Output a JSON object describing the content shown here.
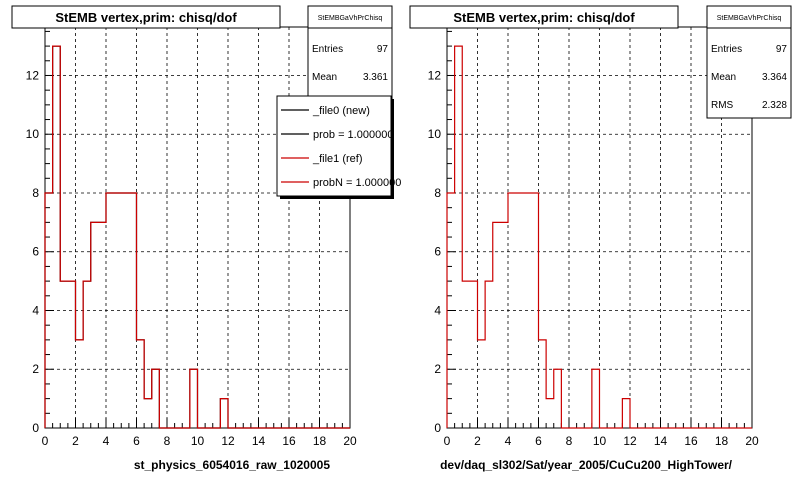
{
  "chart_data": [
    {
      "type": "histogram",
      "title": "StEMB  vertex,prim: chisq/dof",
      "xlabel": "st_physics_6054016_raw_1020005",
      "ylabel": "",
      "xlim": [
        0,
        20
      ],
      "ylim": [
        0,
        13.65
      ],
      "x_ticks": [
        0,
        2,
        4,
        6,
        8,
        10,
        12,
        14,
        16,
        18,
        20
      ],
      "y_ticks": [
        0,
        2,
        4,
        6,
        8,
        10,
        12
      ],
      "grid": true,
      "bin_width": 0.5,
      "x_start": 0,
      "series": [
        {
          "name": "_file0 (new)",
          "color": "#000000",
          "values": [
            8,
            13,
            5,
            5,
            3,
            5,
            7,
            7,
            8,
            8,
            8,
            8,
            3,
            1,
            2,
            0,
            0,
            0,
            0,
            2,
            0,
            0,
            0,
            1,
            0,
            0,
            0,
            0,
            0,
            0,
            0,
            0,
            0,
            0,
            0,
            0,
            0,
            0,
            0,
            0
          ]
        },
        {
          "name": "_file1 (ref)",
          "color": "#cc0000",
          "values": [
            8,
            13,
            5,
            5,
            3,
            5,
            7,
            7,
            8,
            8,
            8,
            8,
            3,
            1,
            2,
            0,
            0,
            0,
            0,
            2,
            0,
            0,
            0,
            1,
            0,
            0,
            0,
            0,
            0,
            0,
            0,
            0,
            0,
            0,
            0,
            0,
            0,
            0,
            0,
            0
          ]
        }
      ],
      "stats": {
        "header": "StEMBGaVhPrChisq",
        "rows": [
          {
            "label": "Entries",
            "value": "97"
          },
          {
            "label": "Mean",
            "value": "3.361"
          }
        ]
      },
      "legend": {
        "position": "top-right",
        "items": [
          {
            "label": "_file0 (new)",
            "color": "#000000"
          },
          {
            "label": "prob = 1.000000",
            "color": "#000000"
          },
          {
            "label": "_file1 (ref)",
            "color": "#cc0000"
          },
          {
            "label": "probN = 1.000000",
            "color": "#cc0000"
          }
        ]
      }
    },
    {
      "type": "histogram",
      "title": "StEMB  vertex,prim: chisq/dof",
      "xlabel": "dev/daq_sl302/Sat/year_2005/CuCu200_HighTower/",
      "ylabel": "",
      "xlim": [
        0,
        20
      ],
      "ylim": [
        0,
        13.65
      ],
      "x_ticks": [
        0,
        2,
        4,
        6,
        8,
        10,
        12,
        14,
        16,
        18,
        20
      ],
      "y_ticks": [
        0,
        2,
        4,
        6,
        8,
        10,
        12
      ],
      "grid": true,
      "bin_width": 0.5,
      "x_start": 0,
      "series": [
        {
          "name": "",
          "color": "#cc0000",
          "values": [
            8,
            13,
            5,
            5,
            3,
            5,
            7,
            7,
            8,
            8,
            8,
            8,
            3,
            1,
            2,
            0,
            0,
            0,
            0,
            2,
            0,
            0,
            0,
            1,
            0,
            0,
            0,
            0,
            0,
            0,
            0,
            0,
            0,
            0,
            0,
            0,
            0,
            0,
            0,
            0
          ]
        }
      ],
      "stats": {
        "header": "StEMBGaVhPrChisq",
        "rows": [
          {
            "label": "Entries",
            "value": "97"
          },
          {
            "label": "Mean",
            "value": "3.364"
          },
          {
            "label": "RMS",
            "value": "2.328"
          }
        ]
      }
    }
  ]
}
